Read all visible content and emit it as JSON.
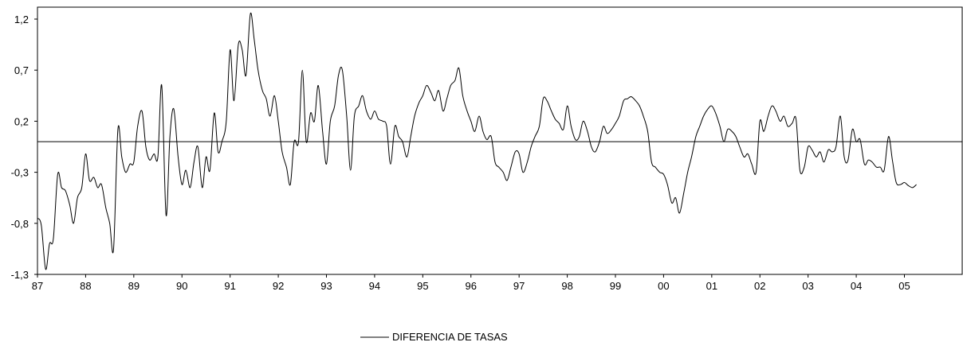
{
  "chart_data": {
    "type": "line",
    "title": "",
    "xlabel": "",
    "ylabel": "",
    "ylim": [
      -1.3,
      1.3
    ],
    "yticks": [
      "1,2",
      "0,7",
      "0,2",
      "-0,3",
      "-0,8",
      "-1,3"
    ],
    "ytick_values": [
      1.2,
      0.7,
      0.2,
      -0.3,
      -0.8,
      -1.3
    ],
    "xlim": [
      1987,
      2006.2
    ],
    "xticks": [
      "87",
      "88",
      "89",
      "90",
      "91",
      "92",
      "93",
      "94",
      "95",
      "96",
      "97",
      "98",
      "99",
      "00",
      "01",
      "02",
      "03",
      "04",
      "05"
    ],
    "reference_line": 0,
    "grid": false,
    "legend": {
      "position": "bottom-center"
    },
    "series": [
      {
        "name": "DIFERENCIA DE TASAS",
        "color": "#000000",
        "x": [
          1987.0,
          1987.08,
          1987.17,
          1987.25,
          1987.33,
          1987.42,
          1987.5,
          1987.58,
          1987.67,
          1987.75,
          1987.83,
          1987.92,
          1988.0,
          1988.08,
          1988.17,
          1988.25,
          1988.33,
          1988.42,
          1988.5,
          1988.58,
          1988.67,
          1988.75,
          1988.83,
          1988.92,
          1989.0,
          1989.08,
          1989.17,
          1989.25,
          1989.33,
          1989.42,
          1989.5,
          1989.58,
          1989.67,
          1989.75,
          1989.83,
          1989.92,
          1990.0,
          1990.08,
          1990.17,
          1990.25,
          1990.33,
          1990.42,
          1990.5,
          1990.58,
          1990.67,
          1990.75,
          1990.83,
          1990.92,
          1991.0,
          1991.08,
          1991.17,
          1991.25,
          1991.33,
          1991.42,
          1991.5,
          1991.58,
          1991.67,
          1991.75,
          1991.83,
          1991.92,
          1992.0,
          1992.08,
          1992.17,
          1992.25,
          1992.33,
          1992.42,
          1992.5,
          1992.58,
          1992.67,
          1992.75,
          1992.83,
          1992.92,
          1993.0,
          1993.08,
          1993.17,
          1993.25,
          1993.33,
          1993.42,
          1993.5,
          1993.58,
          1993.67,
          1993.75,
          1993.83,
          1993.92,
          1994.0,
          1994.08,
          1994.17,
          1994.25,
          1994.33,
          1994.42,
          1994.5,
          1994.58,
          1994.67,
          1994.75,
          1994.83,
          1994.92,
          1995.0,
          1995.08,
          1995.17,
          1995.25,
          1995.33,
          1995.42,
          1995.5,
          1995.58,
          1995.67,
          1995.75,
          1995.83,
          1995.92,
          1996.0,
          1996.08,
          1996.17,
          1996.25,
          1996.33,
          1996.42,
          1996.5,
          1996.58,
          1996.67,
          1996.75,
          1996.83,
          1996.92,
          1997.0,
          1997.08,
          1997.17,
          1997.25,
          1997.33,
          1997.42,
          1997.5,
          1997.58,
          1997.67,
          1997.75,
          1997.83,
          1997.92,
          1998.0,
          1998.08,
          1998.17,
          1998.25,
          1998.33,
          1998.42,
          1998.5,
          1998.58,
          1998.67,
          1998.75,
          1998.83,
          1998.92,
          1999.0,
          1999.08,
          1999.17,
          1999.25,
          1999.33,
          1999.42,
          1999.5,
          1999.58,
          1999.67,
          1999.75,
          1999.83,
          1999.92,
          2000.0,
          2000.08,
          2000.17,
          2000.25,
          2000.33,
          2000.42,
          2000.5,
          2000.58,
          2000.67,
          2000.75,
          2000.83,
          2000.92,
          2001.0,
          2001.08,
          2001.17,
          2001.25,
          2001.33,
          2001.42,
          2001.5,
          2001.58,
          2001.67,
          2001.75,
          2001.83,
          2001.92,
          2002.0,
          2002.08,
          2002.17,
          2002.25,
          2002.33,
          2002.42,
          2002.5,
          2002.58,
          2002.67,
          2002.75,
          2002.83,
          2002.92,
          2003.0,
          2003.08,
          2003.17,
          2003.25,
          2003.33,
          2003.42,
          2003.5,
          2003.58,
          2003.67,
          2003.75,
          2003.83,
          2003.92,
          2004.0,
          2004.08,
          2004.17,
          2004.25,
          2004.33,
          2004.42,
          2004.5,
          2004.58,
          2004.67,
          2004.75,
          2004.83,
          2004.92,
          2005.0,
          2005.08,
          2005.17,
          2005.25
        ],
        "values": [
          -0.75,
          -0.82,
          -1.25,
          -1.0,
          -0.95,
          -0.32,
          -0.45,
          -0.48,
          -0.62,
          -0.8,
          -0.55,
          -0.45,
          -0.12,
          -0.38,
          -0.35,
          -0.45,
          -0.42,
          -0.65,
          -0.8,
          -1.05,
          0.12,
          -0.15,
          -0.3,
          -0.22,
          -0.2,
          0.15,
          0.3,
          -0.05,
          -0.18,
          -0.12,
          -0.15,
          0.55,
          -0.72,
          0.05,
          0.32,
          -0.15,
          -0.42,
          -0.28,
          -0.45,
          -0.2,
          -0.05,
          -0.45,
          -0.15,
          -0.28,
          0.28,
          -0.1,
          0.0,
          0.2,
          0.9,
          0.4,
          0.95,
          0.9,
          0.65,
          1.25,
          1.0,
          0.7,
          0.5,
          0.42,
          0.25,
          0.45,
          0.2,
          -0.1,
          -0.25,
          -0.42,
          0.0,
          0.0,
          0.7,
          0.0,
          0.28,
          0.2,
          0.55,
          0.1,
          -0.22,
          0.2,
          0.35,
          0.65,
          0.7,
          0.25,
          -0.28,
          0.25,
          0.35,
          0.45,
          0.3,
          0.22,
          0.3,
          0.22,
          0.2,
          0.15,
          -0.22,
          0.15,
          0.05,
          0.0,
          -0.15,
          0.05,
          0.25,
          0.38,
          0.45,
          0.55,
          0.48,
          0.4,
          0.5,
          0.3,
          0.42,
          0.55,
          0.6,
          0.72,
          0.45,
          0.3,
          0.2,
          0.1,
          0.25,
          0.1,
          0.02,
          0.05,
          -0.2,
          -0.25,
          -0.3,
          -0.38,
          -0.25,
          -0.1,
          -0.12,
          -0.3,
          -0.2,
          -0.05,
          0.05,
          0.15,
          0.42,
          0.4,
          0.3,
          0.22,
          0.18,
          0.12,
          0.35,
          0.15,
          0.02,
          0.05,
          0.2,
          0.1,
          -0.05,
          -0.1,
          0.0,
          0.15,
          0.08,
          0.12,
          0.18,
          0.25,
          0.4,
          0.42,
          0.44,
          0.4,
          0.35,
          0.25,
          0.1,
          -0.2,
          -0.25,
          -0.3,
          -0.32,
          -0.42,
          -0.6,
          -0.55,
          -0.7,
          -0.5,
          -0.3,
          -0.15,
          0.05,
          0.15,
          0.25,
          0.32,
          0.35,
          0.28,
          0.15,
          0.0,
          0.12,
          0.1,
          0.05,
          -0.05,
          -0.15,
          -0.12,
          -0.22,
          -0.3,
          0.2,
          0.1,
          0.25,
          0.35,
          0.3,
          0.2,
          0.25,
          0.15,
          0.18,
          0.22,
          -0.28,
          -0.25,
          -0.05,
          -0.08,
          -0.15,
          -0.1,
          -0.2,
          -0.08,
          -0.1,
          -0.05,
          0.25,
          -0.15,
          -0.18,
          0.12,
          0.0,
          0.02,
          -0.22,
          -0.18,
          -0.2,
          -0.25,
          -0.25,
          -0.28,
          0.05,
          -0.18,
          -0.4,
          -0.42,
          -0.4,
          -0.43,
          -0.45,
          -0.42
        ]
      }
    ]
  }
}
